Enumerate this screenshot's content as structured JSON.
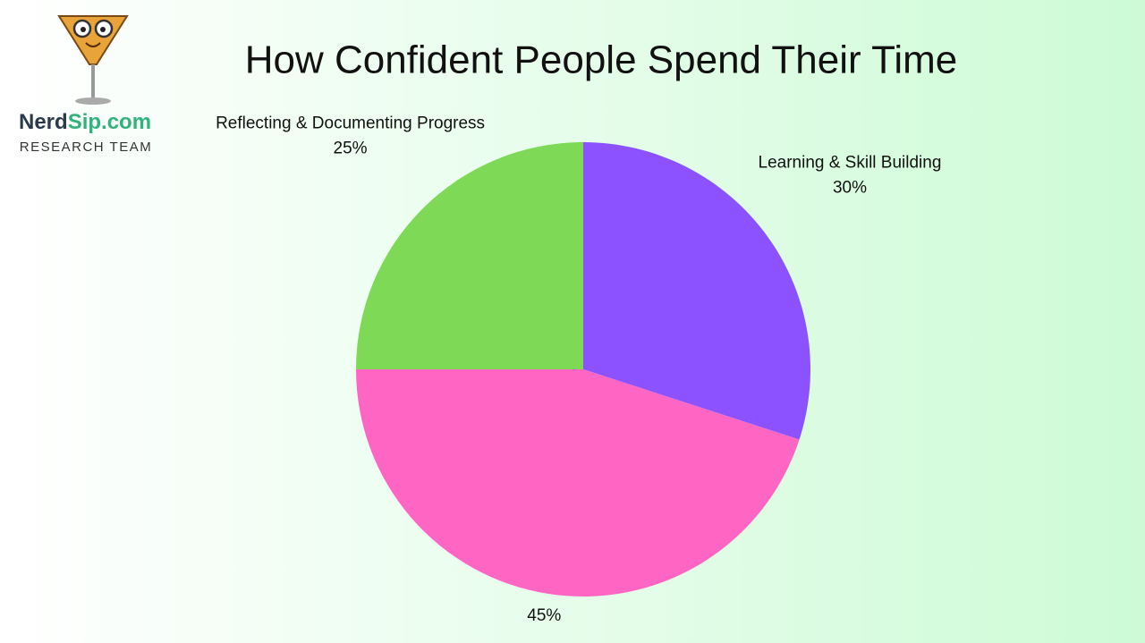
{
  "logo": {
    "brand": "Nerd",
    "brand_accent": "Sip.com",
    "tagline": "RESEARCH TEAM"
  },
  "chart_data": {
    "type": "pie",
    "title": "How Confident People Spend Their Time",
    "categories": [
      "Learning & Skill Building",
      null,
      "Reflecting & Documenting Progress"
    ],
    "values": [
      30,
      45,
      25
    ],
    "value_labels": [
      "30%",
      "45%",
      "25%"
    ],
    "colors": [
      "#8c52ff",
      "#ff66c4",
      "#7ed957"
    ]
  }
}
